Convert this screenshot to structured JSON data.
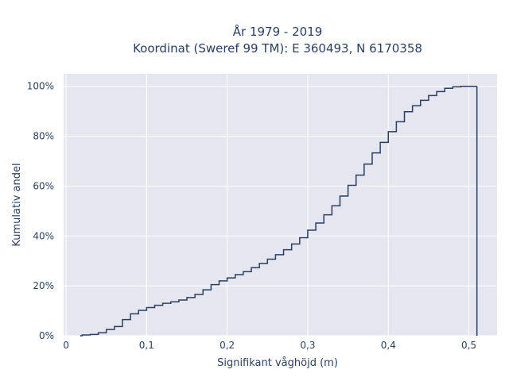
{
  "chart_data": {
    "type": "line",
    "subtype": "cumulative-step",
    "title_line1": "År 1979 - 2019",
    "title_line2": "Koordinat (Sweref 99 TM): E 360493, N 6170358",
    "xlabel": "Signifikant våghöjd (m)",
    "ylabel": "Kumulativ andel",
    "xlim": [
      -0.003,
      0.535
    ],
    "ylim": [
      0,
      1.05
    ],
    "x_ticks": [
      0,
      0.1,
      0.2,
      0.3,
      0.4,
      0.5
    ],
    "x_tick_labels": [
      "0",
      "0,1",
      "0,2",
      "0,3",
      "0,4",
      "0,5"
    ],
    "y_ticks": [
      0,
      0.2,
      0.4,
      0.6,
      0.8,
      1.0
    ],
    "y_tick_labels": [
      "0%",
      "20%",
      "40%",
      "60%",
      "80%",
      "100%"
    ],
    "grid": true,
    "colors": {
      "plot_bg": "#e5e6f0",
      "grid": "#ffffff",
      "line": "#2a3f5f",
      "text": "#2a3f5f"
    },
    "series": [
      {
        "x": [
          0.02,
          0.03,
          0.04,
          0.05,
          0.06,
          0.07,
          0.08,
          0.09,
          0.1,
          0.11,
          0.12,
          0.13,
          0.14,
          0.15,
          0.16,
          0.17,
          0.18,
          0.19,
          0.2,
          0.21,
          0.22,
          0.23,
          0.24,
          0.25,
          0.26,
          0.27,
          0.28,
          0.29,
          0.3,
          0.31,
          0.32,
          0.33,
          0.34,
          0.35,
          0.36,
          0.37,
          0.38,
          0.39,
          0.4,
          0.41,
          0.42,
          0.43,
          0.44,
          0.45,
          0.46,
          0.47,
          0.48,
          0.49,
          0.5,
          0.51
        ],
        "y": [
          0.003,
          0.005,
          0.012,
          0.025,
          0.037,
          0.065,
          0.088,
          0.102,
          0.113,
          0.122,
          0.13,
          0.136,
          0.143,
          0.153,
          0.166,
          0.184,
          0.205,
          0.22,
          0.232,
          0.245,
          0.257,
          0.273,
          0.29,
          0.307,
          0.325,
          0.345,
          0.368,
          0.393,
          0.423,
          0.452,
          0.485,
          0.521,
          0.56,
          0.603,
          0.644,
          0.688,
          0.733,
          0.775,
          0.818,
          0.858,
          0.898,
          0.922,
          0.944,
          0.963,
          0.979,
          0.992,
          0.998,
          1.0,
          1.0,
          1.0
        ]
      }
    ]
  }
}
